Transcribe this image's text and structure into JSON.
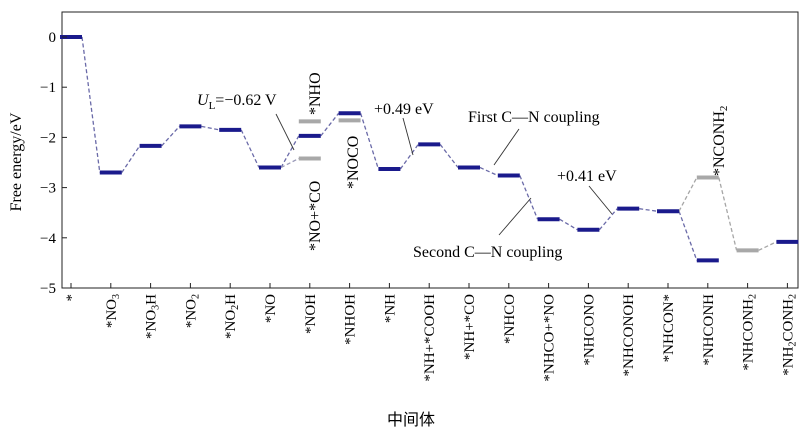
{
  "chart_data": {
    "type": "line",
    "ylabel": "Free energy/eV",
    "xlabel": "中间体",
    "ylim": [
      -5,
      0.5
    ],
    "yticks": [
      "0",
      "−1",
      "−2",
      "−3",
      "−4",
      "−5"
    ],
    "yticks_values": [
      0,
      -1,
      -2,
      -3,
      -4,
      -5
    ],
    "categories": [
      "*",
      "*NO3",
      "*NO3H",
      "*NO2",
      "*NO2H",
      "*NO",
      "*NOH",
      "*NHOH",
      "*NH",
      "*NH+*COOH",
      "*NH+*CO",
      "*NHCO",
      "*NHCO+*NO",
      "*NHCONO",
      "*NHCONOH",
      "*NHCON*",
      "*NHCONH",
      "*NHCONH2",
      "*NH2CONH2"
    ],
    "series": [
      {
        "levels": [
          {
            "x": 0,
            "y": 0.0
          },
          {
            "x": 1,
            "y": -2.7
          },
          {
            "x": 2,
            "y": -2.17
          },
          {
            "x": 3,
            "y": -1.78
          },
          {
            "x": 4,
            "y": -1.85
          },
          {
            "x": 5,
            "y": -2.6
          },
          {
            "x": 6,
            "y": -1.97
          },
          {
            "x": 7,
            "y": -1.52
          },
          {
            "x": 8,
            "y": -2.63
          },
          {
            "x": 9,
            "y": -2.14
          },
          {
            "x": 10,
            "y": -2.6
          },
          {
            "x": 11,
            "y": -2.76
          },
          {
            "x": 12,
            "y": -3.63
          },
          {
            "x": 13,
            "y": -3.84
          },
          {
            "x": 14,
            "y": -3.42
          },
          {
            "x": 15,
            "y": -3.47
          },
          {
            "x": 16,
            "y": -4.45
          },
          {
            "x": 18,
            "y": -4.08
          }
        ],
        "color": "#1a1a8c"
      },
      {
        "levels": [
          {
            "x": 6,
            "y": -1.68
          },
          {
            "x": 6,
            "y": -2.42
          },
          {
            "x": 7,
            "y": -1.66
          },
          {
            "x": 16,
            "y": -2.8
          },
          {
            "x": 17,
            "y": -4.25
          }
        ],
        "color": "#a8a8a8"
      }
    ],
    "path_blue": [
      {
        "x": 0,
        "y": 0.0
      },
      {
        "x": 1,
        "y": -2.7
      },
      {
        "x": 2,
        "y": -2.17
      },
      {
        "x": 3,
        "y": -1.78
      },
      {
        "x": 4,
        "y": -1.85
      },
      {
        "x": 5,
        "y": -2.6
      },
      {
        "x": 6,
        "y": -1.97
      },
      {
        "x": 7,
        "y": -1.52
      },
      {
        "x": 8,
        "y": -2.63
      },
      {
        "x": 9,
        "y": -2.14
      },
      {
        "x": 10,
        "y": -2.6
      },
      {
        "x": 11,
        "y": -2.76
      },
      {
        "x": 12,
        "y": -3.63
      },
      {
        "x": 13,
        "y": -3.84
      },
      {
        "x": 14,
        "y": -3.42
      },
      {
        "x": 15,
        "y": -3.47
      },
      {
        "x": 16,
        "y": -4.45
      }
    ],
    "path_gray": [
      {
        "x": 15,
        "y": -3.47
      },
      {
        "x": 16,
        "y": -2.8
      },
      {
        "x": 17,
        "y": -4.25
      },
      {
        "x": 18,
        "y": -4.08
      }
    ],
    "path_side": [
      {
        "x": 5,
        "y": -2.6
      },
      {
        "x": 6,
        "y": -2.42
      }
    ],
    "annotations": {
      "ul": {
        "prefix": "U",
        "sub": "L",
        "value": "=−0.62 V"
      },
      "nho": "*NHO",
      "no_co": "*NO+*CO",
      "noco": "*NOCO",
      "e1": "+0.49 eV",
      "first": "First C—N coupling",
      "e2": "+0.41 eV",
      "second": "Second C—N coupling",
      "nconh2": {
        "text": "*NCONH",
        "sub": "2"
      }
    }
  }
}
